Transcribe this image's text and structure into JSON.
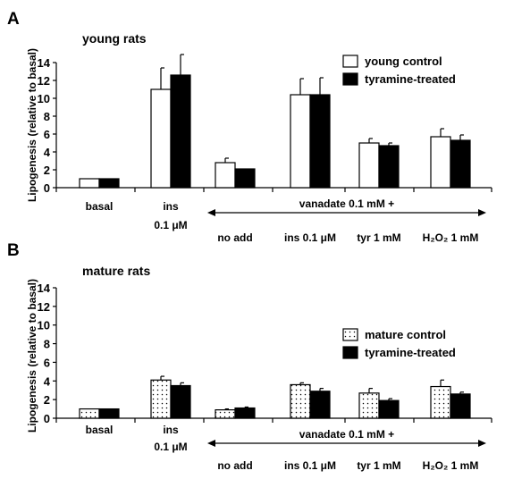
{
  "colors": {
    "control_young": "#ffffff",
    "treated": "#000000",
    "control_mature": "dotted-white",
    "stroke": "#000000"
  },
  "chart_data": [
    {
      "type": "bar",
      "panel": "A",
      "title": "young rats",
      "ylabel": "Lipogenesis (relative to basal)",
      "xlabel": "",
      "ylim": [
        0,
        14
      ],
      "yticks": [
        "0",
        "2",
        "4",
        "6",
        "8",
        "10",
        "12",
        "14"
      ],
      "categories": [
        "basal",
        "ins 0.1 μM",
        "no add",
        "ins 0.1 μM",
        "tyr 1 mM",
        "H2O2 1 mM"
      ],
      "category_labels": [
        {
          "line1": "basal",
          "line2": ""
        },
        {
          "line1": "ins",
          "line2": "0.1 μM"
        },
        {
          "line1": "no add",
          "line2": ""
        },
        {
          "line1": "ins 0.1 μM",
          "line2": ""
        },
        {
          "line1": "tyr 1 mM",
          "line2": ""
        },
        {
          "line1": "H₂O₂ 1 mM",
          "line2": ""
        }
      ],
      "group_label": "vanadate 0.1 mM +",
      "series": [
        {
          "name": "young control",
          "fill": "white",
          "values": [
            1.0,
            11.0,
            2.8,
            10.4,
            5.0,
            5.7
          ],
          "errors": [
            0.0,
            2.4,
            0.5,
            1.8,
            0.5,
            0.9
          ]
        },
        {
          "name": "tyramine-treated",
          "fill": "black",
          "values": [
            1.0,
            12.6,
            2.1,
            10.4,
            4.7,
            5.3
          ],
          "errors": [
            0.0,
            2.3,
            0.0,
            1.9,
            0.3,
            0.6
          ]
        }
      ],
      "legend_position": "top-right",
      "grid": false
    },
    {
      "type": "bar",
      "panel": "B",
      "title": "mature rats",
      "ylabel": "Lipogenesis (relative to basal)",
      "xlabel": "",
      "ylim": [
        0,
        14
      ],
      "yticks": [
        "0",
        "2",
        "4",
        "6",
        "8",
        "10",
        "12",
        "14"
      ],
      "categories": [
        "basal",
        "ins 0.1 μM",
        "no add",
        "ins 0.1 μM",
        "tyr 1 mM",
        "H2O2 1 mM"
      ],
      "category_labels": [
        {
          "line1": "basal",
          "line2": ""
        },
        {
          "line1": "ins",
          "line2": "0.1 μM"
        },
        {
          "line1": "no add",
          "line2": ""
        },
        {
          "line1": "ins 0.1 μM",
          "line2": ""
        },
        {
          "line1": "tyr 1 mM",
          "line2": ""
        },
        {
          "line1": "H₂O₂ 1 mM",
          "line2": ""
        }
      ],
      "group_label": "vanadate 0.1 mM +",
      "series": [
        {
          "name": "mature control",
          "fill": "dotted",
          "values": [
            1.0,
            4.1,
            0.9,
            3.6,
            2.7,
            3.4
          ],
          "errors": [
            0.0,
            0.4,
            0.1,
            0.2,
            0.5,
            0.7
          ]
        },
        {
          "name": "tyramine-treated",
          "fill": "black",
          "values": [
            1.0,
            3.5,
            1.1,
            2.9,
            1.9,
            2.6
          ],
          "errors": [
            0.0,
            0.3,
            0.1,
            0.3,
            0.2,
            0.2
          ]
        }
      ],
      "legend_position": "right",
      "grid": false
    }
  ]
}
